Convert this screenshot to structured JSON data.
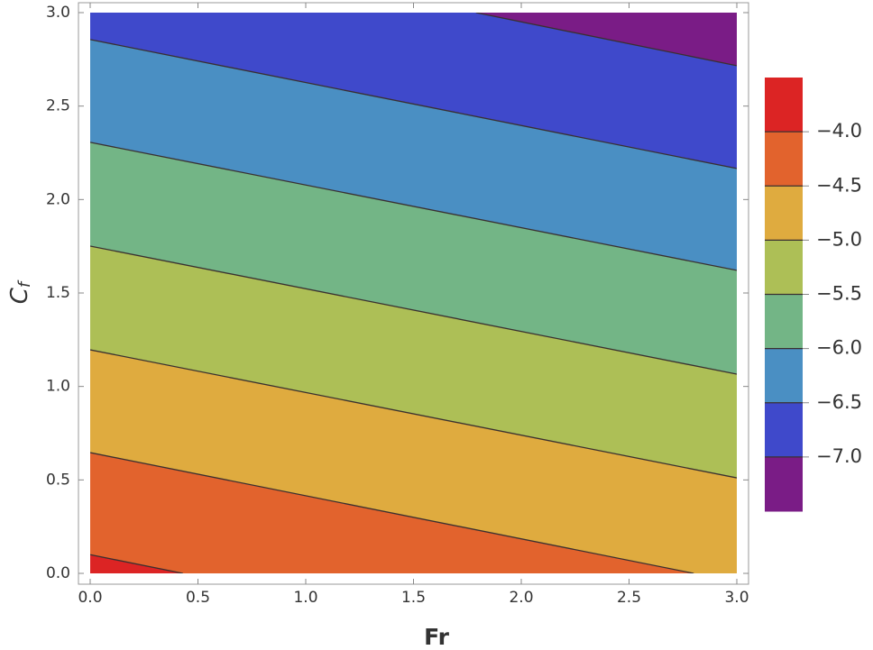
{
  "chart_data": {
    "type": "contour",
    "xlabel": "Fr",
    "ylabel": "C",
    "ylabel_sub": "f",
    "xlim": [
      0,
      3
    ],
    "ylim": [
      0,
      3
    ],
    "xticks": [
      {
        "value": 0,
        "label": "0.0"
      },
      {
        "value": 0.5,
        "label": "0.5"
      },
      {
        "value": 1,
        "label": "1.0"
      },
      {
        "value": 1.5,
        "label": "1.5"
      },
      {
        "value": 2,
        "label": "2.0"
      },
      {
        "value": 2.5,
        "label": "2.5"
      },
      {
        "value": 3,
        "label": "3.0"
      }
    ],
    "yticks": [
      {
        "value": 0,
        "label": "0.0"
      },
      {
        "value": 0.5,
        "label": "0.5"
      },
      {
        "value": 1,
        "label": "1.0"
      },
      {
        "value": 1.5,
        "label": "1.5"
      },
      {
        "value": 2,
        "label": "2.0"
      },
      {
        "value": 2.5,
        "label": "2.5"
      },
      {
        "value": 3,
        "label": "3.0"
      }
    ],
    "levels": [
      {
        "value": -4,
        "label": "−4.0"
      },
      {
        "value": -4.5,
        "label": "−4.5"
      },
      {
        "value": -5,
        "label": "−5.0"
      },
      {
        "value": -5.5,
        "label": "−5.5"
      },
      {
        "value": -6,
        "label": "−6.0"
      },
      {
        "value": -6.5,
        "label": "−6.5"
      },
      {
        "value": -7,
        "label": "−7.0"
      }
    ],
    "colors": [
      "#dc2424",
      "#e2632d",
      "#dfab3f",
      "#adbf56",
      "#73b586",
      "#4a8fc3",
      "#3f49cb",
      "#7a1c86"
    ],
    "contours": [
      {
        "x": [
          0,
          0.43
        ],
        "y": [
          0.1,
          0
        ]
      },
      {
        "x": [
          0,
          2.8
        ],
        "y": [
          0.646,
          0
        ]
      },
      {
        "x": [
          0,
          3
        ],
        "y": [
          1.196,
          0.511
        ]
      },
      {
        "x": [
          0,
          3
        ],
        "y": [
          1.751,
          1.066
        ]
      },
      {
        "x": [
          0,
          3
        ],
        "y": [
          2.306,
          1.621
        ]
      },
      {
        "x": [
          0,
          3
        ],
        "y": [
          2.856,
          2.166
        ]
      },
      {
        "x": [
          1.79,
          3
        ],
        "y": [
          3,
          2.716
        ]
      }
    ]
  }
}
